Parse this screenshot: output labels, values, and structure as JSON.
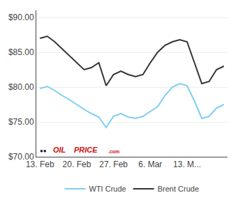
{
  "chart_data": {
    "type": "line",
    "x": [
      0,
      1,
      2,
      3,
      4,
      5,
      6,
      7,
      8,
      9,
      10,
      11,
      12,
      13,
      14,
      15,
      16,
      17,
      18,
      19,
      20,
      21,
      22,
      23,
      24,
      25
    ],
    "series": [
      {
        "name": "WTI Crude",
        "color": "#7ecef4",
        "values": [
          79.8,
          80.1,
          79.5,
          78.8,
          78.2,
          77.5,
          76.8,
          76.2,
          75.7,
          74.2,
          75.8,
          76.2,
          75.7,
          75.5,
          75.8,
          76.5,
          77.2,
          78.8,
          80.0,
          80.5,
          80.2,
          78.0,
          75.5,
          75.8,
          77.0,
          77.5
        ]
      },
      {
        "name": "Brent Crude",
        "color": "#333333",
        "values": [
          87.0,
          87.3,
          86.5,
          85.5,
          84.5,
          83.5,
          82.5,
          82.8,
          83.5,
          80.2,
          81.8,
          82.3,
          81.8,
          81.5,
          81.8,
          83.5,
          85.0,
          86.0,
          86.5,
          86.8,
          86.5,
          83.5,
          80.5,
          80.8,
          82.5,
          83.0
        ]
      }
    ],
    "xlim": [
      -0.5,
      25.5
    ],
    "xticks": [
      {
        "value": 0,
        "label": "13. Feb"
      },
      {
        "value": 5,
        "label": "20. Feb"
      },
      {
        "value": 10,
        "label": "27. Feb"
      },
      {
        "value": 15,
        "label": "6. Mar"
      },
      {
        "value": 20,
        "label": "13. M..."
      }
    ],
    "ylim": [
      70,
      91
    ],
    "yticks": [
      {
        "value": 70,
        "label": "$70.00"
      },
      {
        "value": 75,
        "label": "$75.00"
      },
      {
        "value": 80,
        "label": "$80.00"
      },
      {
        "value": 85,
        "label": "$85.00"
      },
      {
        "value": 90,
        "label": "$90.00"
      }
    ],
    "grid": "y",
    "legend": "bottom",
    "annotations": [
      "●●",
      "OIL",
      "PRICE",
      ".com"
    ]
  }
}
